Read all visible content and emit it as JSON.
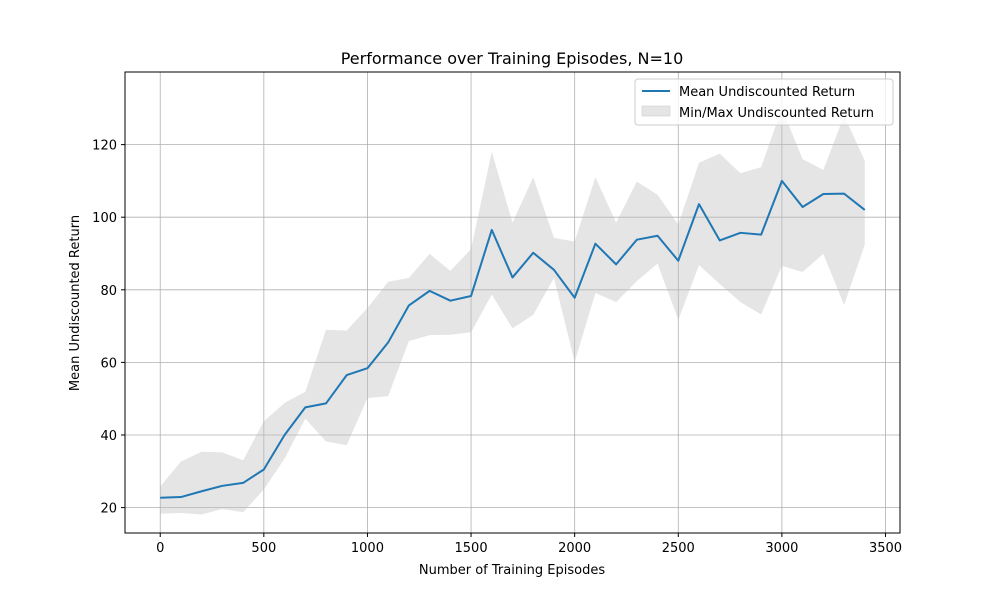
{
  "chart_data": {
    "type": "line",
    "title": "Performance over Training Episodes, N=10",
    "xlabel": "Number of Training Episodes",
    "ylabel": "Mean Undiscounted Return",
    "xlim": [
      -170,
      3570
    ],
    "ylim": [
      13,
      140
    ],
    "xticks": [
      0,
      500,
      1000,
      1500,
      2000,
      2500,
      3000,
      3500
    ],
    "yticks": [
      20,
      40,
      60,
      80,
      100,
      120
    ],
    "grid": true,
    "legend_position": "top-right",
    "x": [
      0,
      100,
      200,
      300,
      400,
      500,
      600,
      700,
      800,
      900,
      1000,
      1100,
      1200,
      1300,
      1400,
      1500,
      1600,
      1700,
      1800,
      1900,
      2000,
      2100,
      2200,
      2300,
      2400,
      2500,
      2600,
      2700,
      2800,
      2900,
      3000,
      3100,
      3200,
      3300,
      3400
    ],
    "series": [
      {
        "name": "Mean Undiscounted Return",
        "color": "#1f77b4",
        "values": [
          22.7,
          22.9,
          24.5,
          26.0,
          26.8,
          30.5,
          40.0,
          47.6,
          48.7,
          56.5,
          58.4,
          65.5,
          75.7,
          79.7,
          77.0,
          78.3,
          96.5,
          83.4,
          90.2,
          85.5,
          77.8,
          92.7,
          87.0,
          93.8,
          94.9,
          88.0,
          103.6,
          93.6,
          95.7,
          95.2,
          110.0,
          102.8,
          106.4,
          106.5,
          102.0
        ]
      },
      {
        "name": "Min/Max Undiscounted Return",
        "color": "#bfbfbf",
        "min": [
          18.3,
          18.5,
          18.1,
          19.6,
          18.7,
          25.0,
          33.5,
          44.5,
          38.2,
          37.2,
          50.2,
          50.7,
          65.9,
          67.5,
          67.6,
          68.3,
          78.7,
          69.4,
          73.1,
          83.3,
          60.1,
          79.1,
          76.6,
          82.4,
          87.2,
          71.7,
          86.8,
          81.6,
          76.6,
          73.2,
          86.6,
          84.9,
          89.9,
          75.8,
          92.4
        ],
        "max": [
          25.8,
          32.7,
          35.4,
          35.2,
          33.0,
          43.8,
          48.8,
          51.9,
          69.0,
          68.8,
          75.0,
          82.2,
          83.3,
          89.9,
          85.2,
          91.2,
          118.0,
          98.5,
          111.0,
          94.3,
          93.3,
          111.0,
          98.5,
          109.8,
          106.2,
          98.0,
          115.0,
          117.5,
          112.1,
          113.8,
          130.0,
          116.0,
          113.0,
          128.0,
          115.6
        ]
      }
    ]
  }
}
